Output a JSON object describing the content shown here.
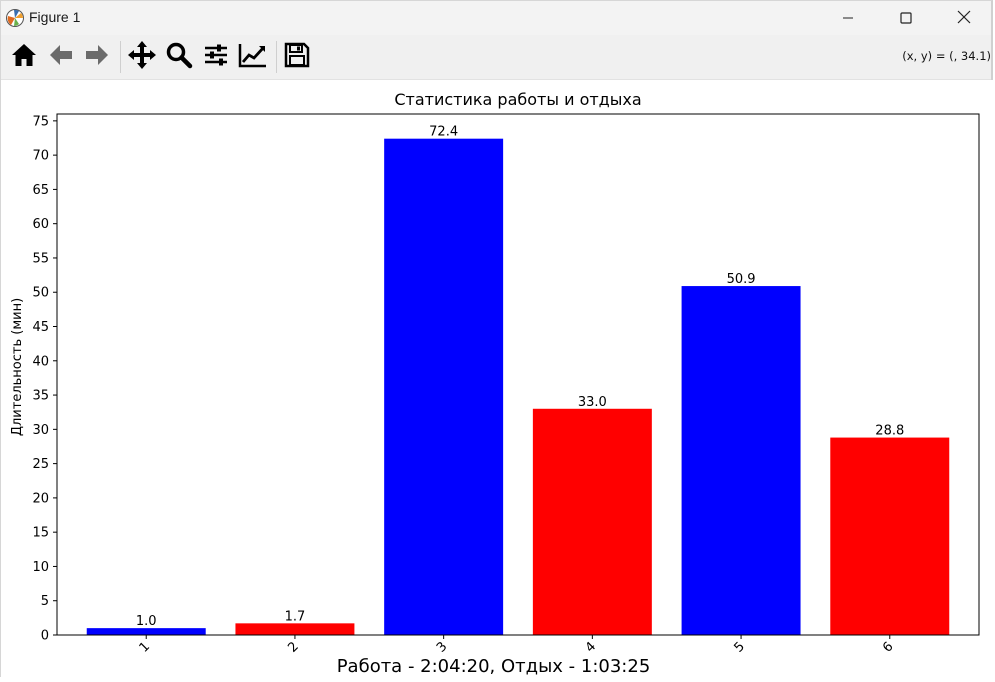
{
  "window": {
    "title": "Figure 1"
  },
  "toolbar": {
    "tools": [
      {
        "name": "home-icon"
      },
      {
        "name": "back-arrow-icon"
      },
      {
        "name": "forward-arrow-icon"
      },
      {
        "name": "pan-icon"
      },
      {
        "name": "zoom-icon"
      },
      {
        "name": "configure-subplots-icon"
      },
      {
        "name": "edit-axis-icon"
      },
      {
        "name": "save-icon"
      }
    ],
    "coords_readout": "(x, y) = (, 34.1)"
  },
  "footer": {
    "text": "Работа - 2:04:20, Отдых - 1:03:25"
  },
  "colors": {
    "work": "#0000ff",
    "rest": "#ff0000"
  },
  "chart_data": {
    "type": "bar",
    "title": "Статистика работы и отдыха",
    "xlabel": "",
    "ylabel": "Длительность (мин)",
    "categories": [
      "1",
      "2",
      "3",
      "4",
      "5",
      "6"
    ],
    "values": [
      1.0,
      1.7,
      72.4,
      33.0,
      50.9,
      28.8
    ],
    "value_labels": [
      "1.0",
      "1.7",
      "72.4",
      "33.0",
      "50.9",
      "28.8"
    ],
    "bar_colors": [
      "#0000ff",
      "#ff0000",
      "#0000ff",
      "#ff0000",
      "#0000ff",
      "#ff0000"
    ],
    "ylim": [
      0,
      76
    ],
    "yticks": [
      0,
      5,
      10,
      15,
      20,
      25,
      30,
      35,
      40,
      45,
      50,
      55,
      60,
      65,
      70,
      75
    ],
    "xtick_rotation": 45,
    "grid": false,
    "legend": "none"
  }
}
